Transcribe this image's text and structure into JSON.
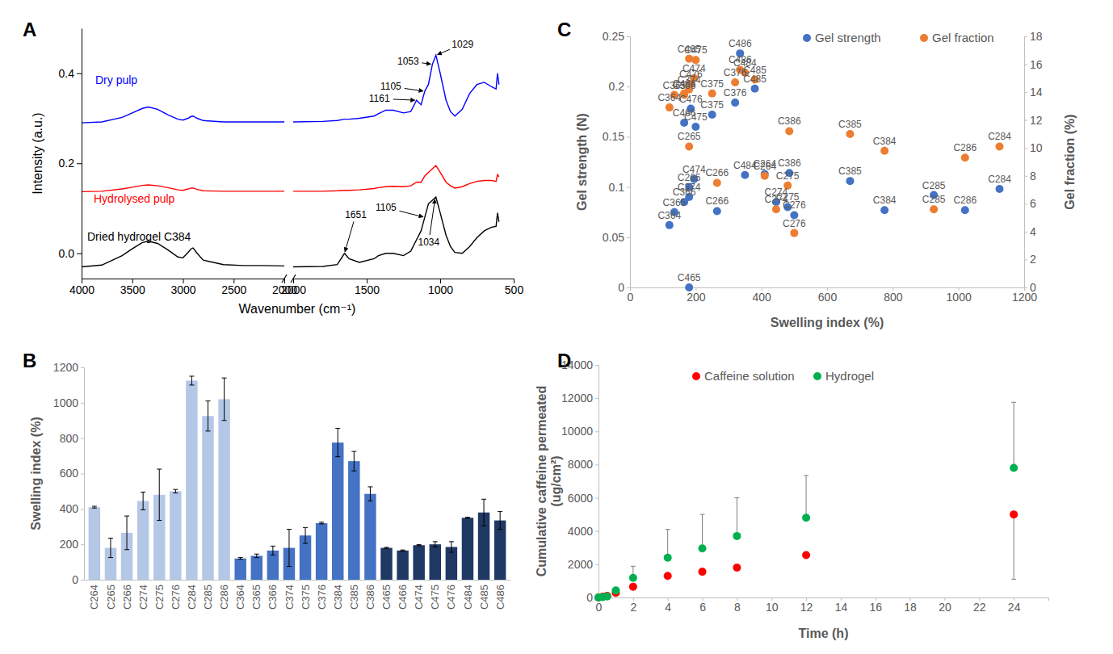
{
  "chart_data": [
    {
      "type": "line",
      "title": "A",
      "ylabel": "Intensity (a.u.)",
      "xlim": [
        4000,
        2000
      ],
      "xticks": [
        4000,
        3500,
        3000,
        2500,
        2000
      ],
      "ylim": [
        -0.056,
        0.5
      ],
      "yticks": [
        {
          "value": 0,
          "label": "0.0"
        },
        0.2,
        0.4
      ],
      "x": [
        4000,
        3800,
        3600,
        3500,
        3400,
        3340,
        3250,
        3150,
        3050,
        3000,
        2950,
        2920,
        2900,
        2860,
        2800,
        2600,
        2400,
        2200,
        2000
      ],
      "series": [
        {
          "name": "Dry pulp",
          "color": "#0000ff",
          "values": [
            0.29,
            0.292,
            0.302,
            0.312,
            0.322,
            0.325,
            0.32,
            0.308,
            0.298,
            0.296,
            0.3,
            0.304,
            0.305,
            0.3,
            0.295,
            0.292,
            0.292,
            0.292,
            0.292
          ]
        },
        {
          "name": "Hydrolysed pulp",
          "color": "#ff0000",
          "values": [
            0.137,
            0.138,
            0.143,
            0.147,
            0.151,
            0.152,
            0.15,
            0.146,
            0.141,
            0.14,
            0.143,
            0.145,
            0.145,
            0.142,
            0.139,
            0.138,
            0.138,
            0.138,
            0.138
          ]
        },
        {
          "name": "Dried hydrogel C384",
          "color": "#000000",
          "values": [
            -0.03,
            -0.026,
            -0.005,
            0.01,
            0.024,
            0.027,
            0.022,
            0.008,
            -0.008,
            -0.01,
            0.002,
            0.01,
            0.012,
            0,
            -0.015,
            -0.025,
            -0.027,
            -0.027,
            -0.028
          ]
        }
      ]
    },
    {
      "type": "line",
      "xlabel": "Wavenumber (cm⁻¹)",
      "xlim": [
        2000,
        500
      ],
      "xticks": [
        2000,
        1500,
        1000,
        500
      ],
      "ylim": [
        -0.056,
        0.5
      ],
      "tick_labels": "x",
      "x": [
        2000,
        1800,
        1700,
        1651,
        1620,
        1550,
        1450,
        1420,
        1370,
        1320,
        1250,
        1200,
        1161,
        1130,
        1105,
        1080,
        1053,
        1029,
        1000,
        960,
        930,
        900,
        850,
        800,
        750,
        700,
        650,
        620,
        610,
        600
      ],
      "series": [
        {
          "color": "#0000ff",
          "values": [
            0.292,
            0.293,
            0.295,
            0.298,
            0.298,
            0.3,
            0.305,
            0.31,
            0.318,
            0.318,
            0.312,
            0.315,
            0.34,
            0.33,
            0.36,
            0.375,
            0.42,
            0.44,
            0.4,
            0.34,
            0.315,
            0.305,
            0.32,
            0.355,
            0.375,
            0.38,
            0.37,
            0.365,
            0.4,
            0.375
          ],
          "annotations": [
            1029,
            1053,
            1105,
            1161
          ]
        },
        {
          "color": "#ff0000",
          "values": [
            0.138,
            0.138,
            0.139,
            0.14,
            0.14,
            0.141,
            0.144,
            0.146,
            0.148,
            0.149,
            0.148,
            0.15,
            0.158,
            0.158,
            0.172,
            0.18,
            0.188,
            0.195,
            0.18,
            0.158,
            0.15,
            0.145,
            0.148,
            0.155,
            0.16,
            0.162,
            0.162,
            0.16,
            0.175,
            0.17
          ]
        },
        {
          "color": "#000000",
          "values": [
            -0.03,
            -0.029,
            -0.025,
            0,
            -0.012,
            -0.02,
            -0.012,
            -0.005,
            0,
            0,
            -0.005,
            0.005,
            0.03,
            0.05,
            0.08,
            0.11,
            0.118,
            0.125,
            0.09,
            0.04,
            0.015,
            0.002,
            0,
            0.015,
            0.035,
            0.05,
            0.058,
            0.06,
            0.09,
            0.07
          ],
          "annotations": [
            1651,
            1105,
            1034
          ]
        }
      ]
    },
    {
      "type": "bar",
      "title": "B",
      "ylabel": "Swelling index (%)",
      "categories": [
        "C264",
        "C265",
        "C266",
        "C274",
        "C275",
        "C276",
        "C284",
        "C285",
        "C286",
        "C364",
        "C365",
        "C366",
        "C374",
        "C375",
        "C376",
        "C384",
        "C385",
        "C386",
        "C465",
        "C466",
        "C474",
        "C475",
        "C476",
        "C484",
        "C485",
        "C486"
      ],
      "values": [
        410,
        180,
        265,
        445,
        480,
        500,
        1125,
        925,
        1020,
        120,
        135,
        165,
        180,
        250,
        320,
        775,
        670,
        485,
        180,
        165,
        195,
        200,
        185,
        350,
        380,
        335
      ],
      "errors": [
        5,
        55,
        95,
        50,
        145,
        10,
        25,
        85,
        120,
        5,
        10,
        25,
        105,
        45,
        5,
        80,
        55,
        40,
        3,
        3,
        3,
        15,
        30,
        3,
        75,
        50
      ],
      "colors": [
        "#b4c7e7",
        "#b4c7e7",
        "#b4c7e7",
        "#b4c7e7",
        "#b4c7e7",
        "#b4c7e7",
        "#b4c7e7",
        "#b4c7e7",
        "#b4c7e7",
        "#4472c4",
        "#4472c4",
        "#4472c4",
        "#4472c4",
        "#4472c4",
        "#4472c4",
        "#4472c4",
        "#4472c4",
        "#4472c4",
        "#203864",
        "#203864",
        "#203864",
        "#203864",
        "#203864",
        "#203864",
        "#203864",
        "#203864"
      ],
      "ylim": [
        0,
        1200
      ],
      "yticks": [
        0,
        200,
        400,
        600,
        800,
        1000,
        1200
      ]
    },
    {
      "type": "scatter",
      "title": "C",
      "xlabel": "Swelling index (%)",
      "ylabel": "Gel strength (N)",
      "y2label": "Gel fraction (%)",
      "categories": [
        "C264",
        "C265",
        "C266",
        "C274",
        "C275",
        "C276",
        "C284",
        "C285",
        "C286",
        "C364",
        "C365",
        "C366",
        "C374",
        "C375",
        "C376",
        "C384",
        "C385",
        "C386",
        "C465",
        "C466",
        "C474",
        "C475",
        "C476",
        "C484",
        "C485",
        "C486"
      ],
      "x": [
        410,
        180,
        265,
        445,
        480,
        500,
        1125,
        925,
        1020,
        120,
        135,
        165,
        180,
        250,
        320,
        775,
        670,
        485,
        180,
        165,
        195,
        200,
        185,
        350,
        380,
        335
      ],
      "xlim": [
        0,
        1200
      ],
      "xticks": [
        0,
        200,
        400,
        600,
        800,
        1000,
        1200
      ],
      "ylim": [
        0,
        0.25
      ],
      "yticks": [
        0,
        0.05,
        0.1,
        0.15,
        0.2,
        0.25
      ],
      "y2lim": [
        0,
        18
      ],
      "y2ticks": [
        0,
        2,
        4,
        6,
        8,
        10,
        12,
        14,
        16,
        18
      ],
      "legend": "upper right",
      "series": [
        {
          "name": "Gel strength",
          "color": "#4472c4",
          "values": [
            0.113,
            0.1,
            0.076,
            0.085,
            0.08,
            0.072,
            0.098,
            0.092,
            0.077,
            0.062,
            0.075,
            0.085,
            0.09,
            0.172,
            0.184,
            0.077,
            0.106,
            0.114,
            0,
            0.164,
            0.108,
            0.16,
            0.178,
            0.112,
            0.198,
            0.233
          ]
        },
        {
          "name": "Gel fraction",
          "color": "#ed7d31",
          "axis": "y2",
          "values": [
            8,
            10.1,
            7.5,
            5.6,
            7.3,
            3.9,
            10.1,
            5.6,
            9.3,
            12.9,
            13.8,
            13.8,
            14.2,
            13.9,
            14.7,
            9.8,
            11,
            11.2,
            16.4,
            13.9,
            15,
            16.3,
            14.6,
            15.4,
            14.9,
            15.6
          ]
        }
      ]
    },
    {
      "type": "scatter",
      "title": "D",
      "xlabel": "Time (h)",
      "ylabel": [
        "Cumulative caffeine permeated",
        "(ug/cm²)"
      ],
      "x": [
        0,
        0.25,
        0.5,
        1,
        2,
        4,
        6,
        8,
        12,
        24
      ],
      "xlim": [
        0,
        26
      ],
      "xticks": [
        0,
        2,
        4,
        6,
        8,
        10,
        12,
        14,
        16,
        18,
        20,
        22,
        24
      ],
      "ylim": [
        0,
        14000
      ],
      "yticks": [
        0,
        2000,
        4000,
        6000,
        8000,
        10000,
        12000,
        14000
      ],
      "legend": "upper left",
      "series": [
        {
          "name": "Caffeine solution",
          "color": "#ff0000",
          "values": [
            0,
            50,
            100,
            280,
            650,
            1300,
            1550,
            1800,
            2550,
            5000
          ],
          "errors": [
            0,
            0,
            0,
            0,
            0,
            0,
            0,
            0,
            0,
            3900
          ]
        },
        {
          "name": "Hydrogel",
          "color": "#00b050",
          "values": [
            0,
            30,
            60,
            420,
            1180,
            2400,
            2950,
            3700,
            4800,
            7800
          ],
          "errors": [
            0,
            0,
            0,
            0,
            700,
            1700,
            2050,
            2300,
            2550,
            3950
          ]
        }
      ]
    }
  ]
}
